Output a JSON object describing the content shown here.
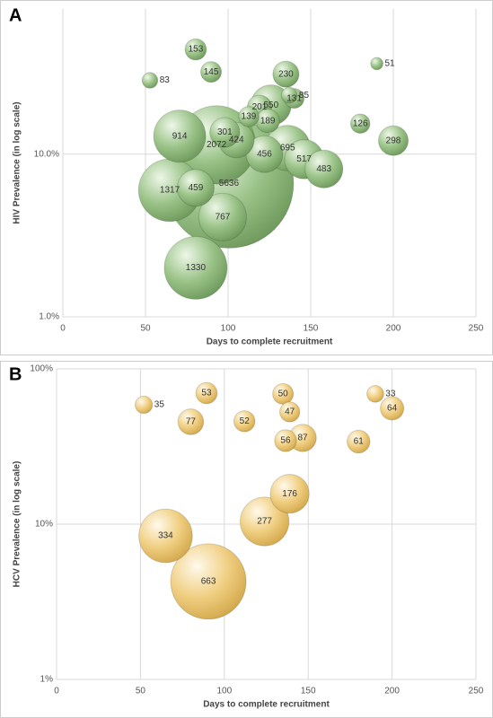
{
  "chart_data": [
    {
      "type": "bubble",
      "panel_label": "A",
      "xlabel": "Days to complete recruitment",
      "ylabel": "HIV Prevalence (in log scale)",
      "xlim": [
        0,
        250
      ],
      "xticks": [
        0,
        50,
        100,
        150,
        200,
        250
      ],
      "ylim": [
        1,
        78
      ],
      "yticks": [
        {
          "value": 1,
          "label": "1.0%"
        },
        {
          "value": 10,
          "label": "10.0%"
        }
      ],
      "log_y": true,
      "grid": true,
      "series": [
        {
          "color": "#9cc48a",
          "x": [
            80.4,
            89.7,
            52.7,
            190,
            135,
            137,
            140,
            119,
            126,
            112.5,
            124,
            180,
            98,
            70.7,
            105,
            93,
            200,
            136,
            122,
            146,
            158,
            100.5,
            64.7,
            80.4,
            96.7,
            80.4
          ],
          "values": [
            44,
            32,
            28.4,
            36,
            31,
            23,
            22,
            19.4,
            20,
            17,
            16,
            15.4,
            13.6,
            12.9,
            12.2,
            11.4,
            12.1,
            10.9,
            10,
            9.3,
            8.1,
            6.6,
            6.0,
            6.2,
            4.1,
            2.0
          ],
          "sizes": [
            153,
            145,
            83,
            51,
            230,
            85,
            131,
            201,
            550,
            139,
            189,
            126,
            301,
            914,
            424,
            2072,
            298,
            695,
            456,
            517,
            483,
            5636,
            1317,
            459,
            767,
            1330
          ]
        }
      ]
    },
    {
      "type": "bubble",
      "panel_label": "B",
      "xlabel": "Days to complete recruitment",
      "ylabel": "HCV Prevalence (in log scale)",
      "xlim": [
        0,
        250
      ],
      "xticks": [
        0,
        50,
        100,
        150,
        200,
        250
      ],
      "ylim": [
        1,
        100
      ],
      "yticks": [
        {
          "value": 1,
          "label": "1%"
        },
        {
          "value": 10,
          "label": "10%"
        },
        {
          "value": 100,
          "label": "100%"
        }
      ],
      "log_y": true,
      "grid": true,
      "series": [
        {
          "color": "#f0cf82",
          "x": [
            52,
            89.4,
            135,
            190,
            200,
            80,
            112,
            139,
            136.5,
            146.7,
            180,
            139,
            124,
            65,
            90.5
          ],
          "values": [
            58.7,
            69.8,
            69,
            69,
            55.7,
            45.6,
            46,
            52.8,
            34.5,
            35.9,
            34,
            15.7,
            10.4,
            8.4,
            4.27
          ],
          "sizes": [
            35,
            53,
            50,
            33,
            64,
            77,
            52,
            47,
            56,
            87,
            61,
            176,
            277,
            334,
            663
          ]
        }
      ]
    }
  ]
}
